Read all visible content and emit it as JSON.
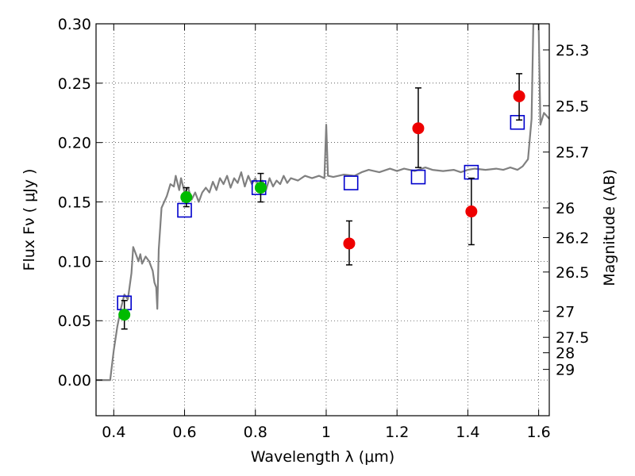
{
  "chart_data": {
    "type": "scatter",
    "xlabel": "Wavelength  λ (μm)",
    "ylabel": "Flux  Fν  ( μJy )",
    "ylabel_right": "Magnitude (AB)",
    "xlim": [
      0.35,
      1.63
    ],
    "ylim": [
      -0.03,
      0.3
    ],
    "grid": true,
    "x_ticks": [
      0.4,
      0.6,
      0.8,
      1.0,
      1.2,
      1.4,
      1.6
    ],
    "x_tick_labels": [
      "0.4",
      "0.6",
      "0.8",
      "1",
      "1.2",
      "1.4",
      "1.6"
    ],
    "y_ticks": [
      0.0,
      0.05,
      0.1,
      0.15,
      0.2,
      0.25,
      0.3
    ],
    "y_tick_labels": [
      "0.00",
      "0.05",
      "0.10",
      "0.15",
      "0.20",
      "0.25",
      "0.30"
    ],
    "right_ticks": [
      {
        "label": "25.3",
        "flux": 0.278
      },
      {
        "label": "25.5",
        "flux": 0.231
      },
      {
        "label": "25.7",
        "flux": 0.192
      },
      {
        "label": "26",
        "flux": 0.145
      },
      {
        "label": "26.2",
        "flux": 0.12
      },
      {
        "label": "26.5",
        "flux": 0.091
      },
      {
        "label": "27",
        "flux": 0.058
      },
      {
        "label": "27.5",
        "flux": 0.036
      },
      {
        "label": "28",
        "flux": 0.023
      },
      {
        "label": "29",
        "flux": 0.009
      }
    ],
    "series": [
      {
        "marker": "line",
        "color": "#808080",
        "points": [
          [
            0.35,
            0.0
          ],
          [
            0.38,
            0.0
          ],
          [
            0.39,
            0.0
          ],
          [
            0.4,
            0.025
          ],
          [
            0.41,
            0.045
          ],
          [
            0.42,
            0.06
          ],
          [
            0.43,
            0.072
          ],
          [
            0.44,
            0.068
          ],
          [
            0.45,
            0.09
          ],
          [
            0.455,
            0.112
          ],
          [
            0.46,
            0.108
          ],
          [
            0.47,
            0.1
          ],
          [
            0.475,
            0.106
          ],
          [
            0.48,
            0.098
          ],
          [
            0.49,
            0.104
          ],
          [
            0.5,
            0.1
          ],
          [
            0.51,
            0.092
          ],
          [
            0.515,
            0.082
          ],
          [
            0.52,
            0.078
          ],
          [
            0.523,
            0.06
          ],
          [
            0.527,
            0.11
          ],
          [
            0.535,
            0.145
          ],
          [
            0.55,
            0.155
          ],
          [
            0.56,
            0.165
          ],
          [
            0.57,
            0.163
          ],
          [
            0.575,
            0.172
          ],
          [
            0.585,
            0.16
          ],
          [
            0.59,
            0.17
          ],
          [
            0.6,
            0.158
          ],
          [
            0.61,
            0.162
          ],
          [
            0.62,
            0.152
          ],
          [
            0.63,
            0.158
          ],
          [
            0.64,
            0.15
          ],
          [
            0.65,
            0.158
          ],
          [
            0.66,
            0.162
          ],
          [
            0.67,
            0.158
          ],
          [
            0.68,
            0.167
          ],
          [
            0.69,
            0.16
          ],
          [
            0.7,
            0.17
          ],
          [
            0.71,
            0.165
          ],
          [
            0.72,
            0.172
          ],
          [
            0.73,
            0.162
          ],
          [
            0.74,
            0.17
          ],
          [
            0.75,
            0.166
          ],
          [
            0.76,
            0.175
          ],
          [
            0.77,
            0.163
          ],
          [
            0.78,
            0.172
          ],
          [
            0.79,
            0.165
          ],
          [
            0.8,
            0.17
          ],
          [
            0.81,
            0.162
          ],
          [
            0.82,
            0.168
          ],
          [
            0.83,
            0.16
          ],
          [
            0.84,
            0.17
          ],
          [
            0.85,
            0.163
          ],
          [
            0.86,
            0.168
          ],
          [
            0.87,
            0.165
          ],
          [
            0.88,
            0.172
          ],
          [
            0.89,
            0.166
          ],
          [
            0.9,
            0.17
          ],
          [
            0.92,
            0.168
          ],
          [
            0.94,
            0.172
          ],
          [
            0.96,
            0.17
          ],
          [
            0.98,
            0.172
          ],
          [
            0.995,
            0.17
          ],
          [
            1.0,
            0.215
          ],
          [
            1.005,
            0.172
          ],
          [
            1.02,
            0.171
          ],
          [
            1.05,
            0.173
          ],
          [
            1.08,
            0.172
          ],
          [
            1.1,
            0.175
          ],
          [
            1.12,
            0.177
          ],
          [
            1.15,
            0.175
          ],
          [
            1.18,
            0.178
          ],
          [
            1.2,
            0.176
          ],
          [
            1.22,
            0.178
          ],
          [
            1.25,
            0.176
          ],
          [
            1.28,
            0.179
          ],
          [
            1.3,
            0.177
          ],
          [
            1.33,
            0.176
          ],
          [
            1.36,
            0.177
          ],
          [
            1.38,
            0.175
          ],
          [
            1.4,
            0.177
          ],
          [
            1.42,
            0.178
          ],
          [
            1.45,
            0.177
          ],
          [
            1.48,
            0.178
          ],
          [
            1.5,
            0.177
          ],
          [
            1.52,
            0.179
          ],
          [
            1.54,
            0.177
          ],
          [
            1.555,
            0.18
          ],
          [
            1.57,
            0.186
          ],
          [
            1.58,
            0.22
          ],
          [
            1.585,
            0.3
          ],
          [
            1.6,
            0.3
          ],
          [
            1.605,
            0.215
          ],
          [
            1.615,
            0.225
          ],
          [
            1.63,
            0.22
          ]
        ]
      },
      {
        "marker": "open-square",
        "color": "#0000cc",
        "points": [
          [
            0.43,
            0.065
          ],
          [
            0.6,
            0.143
          ],
          [
            0.81,
            0.162
          ],
          [
            1.07,
            0.166
          ],
          [
            1.26,
            0.171
          ],
          [
            1.41,
            0.175
          ],
          [
            1.54,
            0.217
          ]
        ]
      },
      {
        "marker": "circle",
        "color": "#00bb00",
        "points": [
          [
            0.43,
            0.055
          ],
          [
            0.605,
            0.154
          ],
          [
            0.815,
            0.162
          ]
        ],
        "yerr": [
          0.012,
          0.008,
          0.012
        ]
      },
      {
        "marker": "circle",
        "color": "#ee0000",
        "points": [
          [
            1.065,
            0.115
          ],
          [
            1.26,
            0.212
          ],
          [
            1.41,
            0.142
          ],
          [
            1.545,
            0.239
          ]
        ],
        "yerr": [
          [
            0.018,
            0.019
          ],
          [
            0.033,
            0.034
          ],
          [
            0.028,
            0.028
          ],
          [
            0.02,
            0.019
          ]
        ]
      }
    ]
  }
}
